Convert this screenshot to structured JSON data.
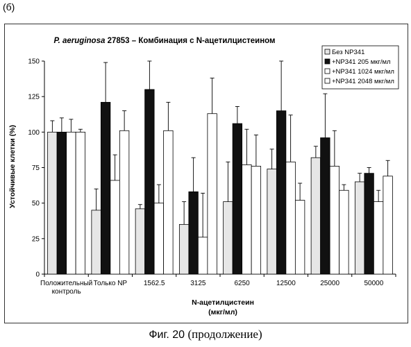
{
  "panel_label": "(б)",
  "caption": {
    "prefix": "Фиг. 20",
    "suffix": "(продолжение)"
  },
  "chart_data": {
    "type": "bar",
    "title_italic": "P. aeruginosa",
    "title_rest": " 27853 – Комбинация с N-ацетилцистеином",
    "ylabel": "Устойчивые клетки (%)",
    "xlabel_line1": "N-ацетилцистеин",
    "xlabel_line2": "(мкг/мл)",
    "ylim": [
      0,
      150
    ],
    "yticks": [
      "0",
      "25",
      "50",
      "75",
      "100",
      "125",
      "150"
    ],
    "ytick_values": [
      0,
      25,
      50,
      75,
      100,
      125,
      150
    ],
    "grid": false,
    "legend_position": "top-right",
    "categories": [
      [
        "Положительный",
        "контроль"
      ],
      [
        "Только NP"
      ],
      [
        "1562.5"
      ],
      [
        "3125"
      ],
      [
        "6250"
      ],
      [
        "12500"
      ],
      [
        "25000"
      ],
      [
        "50000"
      ]
    ],
    "series": [
      {
        "name": "Без NP341",
        "color": "#e6e6e6",
        "values": [
          100,
          45,
          46,
          35,
          51,
          74,
          82,
          65
        ],
        "errors": [
          8,
          15,
          3,
          16,
          28,
          14,
          8,
          6
        ]
      },
      {
        "name": "+NP341 205 мкг/мл",
        "color": "#111111",
        "values": [
          100,
          121,
          130,
          58,
          106,
          115,
          96,
          71
        ],
        "errors": [
          10,
          28,
          20,
          24,
          12,
          35,
          31,
          4
        ]
      },
      {
        "name": "+NP341 1024 мкг/мл",
        "color": "#ffffff",
        "values": [
          100,
          66,
          50,
          26,
          77,
          79,
          76,
          51
        ],
        "errors": [
          9,
          18,
          13,
          31,
          25,
          33,
          25,
          8
        ]
      },
      {
        "name": "+NP341 2048 мкг/мл",
        "color": "#ffffff",
        "values": [
          100,
          101,
          101,
          113,
          76,
          52,
          59,
          69
        ],
        "errors": [
          2,
          14,
          20,
          25,
          22,
          12,
          4,
          11
        ]
      }
    ]
  }
}
